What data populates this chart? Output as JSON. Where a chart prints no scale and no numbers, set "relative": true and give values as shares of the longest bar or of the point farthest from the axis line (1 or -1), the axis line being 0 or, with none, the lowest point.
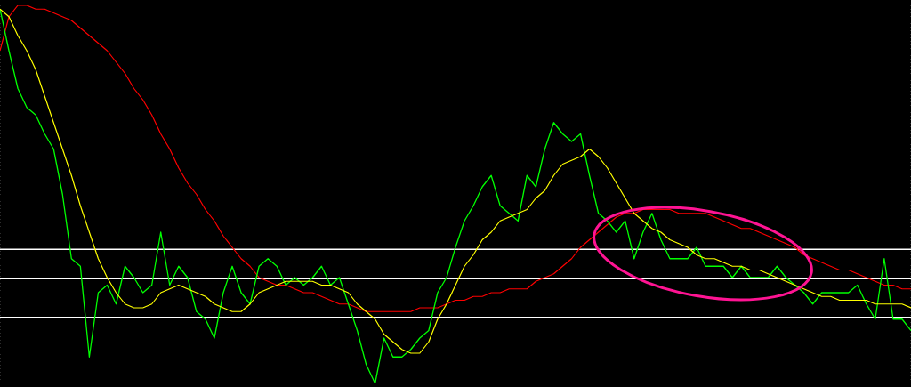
{
  "chart_data": {
    "type": "line",
    "relative": true,
    "grid": "x",
    "marker": "none",
    "line_style": "solid",
    "categories": [
      null,
      null,
      null,
      null,
      null,
      null,
      null,
      null,
      null,
      null,
      null,
      null,
      null,
      null,
      null,
      null,
      null,
      null,
      null,
      null,
      null,
      null,
      null,
      null,
      null,
      null,
      null,
      null,
      null,
      null,
      null,
      null,
      null,
      null,
      null,
      null,
      null,
      null,
      null,
      null,
      null,
      null,
      null,
      null,
      null,
      null,
      null,
      null,
      null,
      null,
      null,
      null,
      null,
      null,
      null,
      null,
      null,
      null,
      null,
      null,
      null,
      null,
      null,
      null,
      null,
      null,
      null,
      null,
      null,
      null,
      null,
      null,
      null,
      null,
      null,
      null,
      null,
      null,
      null,
      null,
      null,
      null,
      null,
      null,
      null,
      null,
      null,
      null,
      null,
      null,
      null,
      null,
      null,
      null,
      null,
      null,
      null,
      null,
      null,
      null,
      null,
      null,
      null
    ],
    "series": [
      {
        "color": "#ff0000",
        "values": [
          0.88,
          0.97,
          1.0,
          1.0,
          0.99,
          0.99,
          0.98,
          0.97,
          0.96,
          0.94,
          0.92,
          0.9,
          0.88,
          0.85,
          0.82,
          0.78,
          0.75,
          0.71,
          0.66,
          0.62,
          0.57,
          0.53,
          0.5,
          0.46,
          0.43,
          0.39,
          0.36,
          0.33,
          0.31,
          0.28,
          0.27,
          0.26,
          0.26,
          0.25,
          0.24,
          0.24,
          0.23,
          0.22,
          0.21,
          0.21,
          0.2,
          0.19,
          0.19,
          0.19,
          0.19,
          0.19,
          0.19,
          0.2,
          0.2,
          0.2,
          0.21,
          0.22,
          0.22,
          0.23,
          0.23,
          0.24,
          0.24,
          0.25,
          0.25,
          0.25,
          0.27,
          0.28,
          0.29,
          0.31,
          0.33,
          0.36,
          0.38,
          0.4,
          0.42,
          0.44,
          0.45,
          0.45,
          0.46,
          0.46,
          0.46,
          0.46,
          0.45,
          0.45,
          0.45,
          0.45,
          0.44,
          0.43,
          0.42,
          0.41,
          0.41,
          0.4,
          0.39,
          0.38,
          0.37,
          0.36,
          0.34,
          0.33,
          0.32,
          0.31,
          0.3,
          0.3,
          0.29,
          0.28,
          0.27,
          0.26,
          0.26,
          0.25,
          0.25
        ]
      },
      {
        "color": "#00ff00",
        "values": [
          0.99,
          0.88,
          0.78,
          0.73,
          0.71,
          0.66,
          0.62,
          0.5,
          0.33,
          0.31,
          0.07,
          0.24,
          0.26,
          0.21,
          0.31,
          0.28,
          0.24,
          0.26,
          0.4,
          0.26,
          0.31,
          0.28,
          0.19,
          0.17,
          0.12,
          0.24,
          0.31,
          0.24,
          0.21,
          0.31,
          0.33,
          0.31,
          0.26,
          0.28,
          0.26,
          0.28,
          0.31,
          0.26,
          0.28,
          0.21,
          0.14,
          0.05,
          0,
          0.12,
          0.07,
          0.07,
          0.09,
          0.12,
          0.14,
          0.24,
          0.28,
          0.36,
          0.43,
          0.47,
          0.52,
          0.55,
          0.47,
          0.45,
          0.43,
          0.55,
          0.52,
          0.62,
          0.69,
          0.66,
          0.64,
          0.66,
          0.55,
          0.45,
          0.43,
          0.4,
          0.43,
          0.33,
          0.4,
          0.45,
          0.38,
          0.33,
          0.33,
          0.33,
          0.36,
          0.31,
          0.31,
          0.31,
          0.28,
          0.31,
          0.28,
          0.28,
          0.28,
          0.31,
          0.28,
          0.26,
          0.24,
          0.21,
          0.24,
          0.24,
          0.24,
          0.24,
          0.26,
          0.21,
          0.17,
          0.33,
          0.17,
          0.17,
          0.14
        ]
      },
      {
        "color": "#ffff00",
        "values": [
          0.99,
          0.97,
          0.92,
          0.88,
          0.83,
          0.76,
          0.69,
          0.62,
          0.55,
          0.47,
          0.4,
          0.33,
          0.28,
          0.24,
          0.21,
          0.2,
          0.2,
          0.21,
          0.24,
          0.25,
          0.26,
          0.25,
          0.24,
          0.23,
          0.21,
          0.2,
          0.19,
          0.19,
          0.21,
          0.24,
          0.25,
          0.26,
          0.27,
          0.27,
          0.27,
          0.27,
          0.26,
          0.26,
          0.25,
          0.24,
          0.21,
          0.19,
          0.17,
          0.13,
          0.11,
          0.09,
          0.08,
          0.08,
          0.11,
          0.17,
          0.21,
          0.26,
          0.31,
          0.34,
          0.38,
          0.4,
          0.43,
          0.44,
          0.45,
          0.46,
          0.49,
          0.51,
          0.55,
          0.58,
          0.59,
          0.6,
          0.62,
          0.6,
          0.57,
          0.53,
          0.49,
          0.45,
          0.43,
          0.41,
          0.4,
          0.38,
          0.37,
          0.36,
          0.34,
          0.33,
          0.33,
          0.32,
          0.31,
          0.31,
          0.3,
          0.3,
          0.29,
          0.28,
          0.27,
          0.26,
          0.25,
          0.24,
          0.23,
          0.23,
          0.22,
          0.22,
          0.22,
          0.22,
          0.21,
          0.21,
          0.21,
          0.21,
          0.2
        ]
      }
    ],
    "ref_lines": [
      {
        "axis": "y",
        "value": 0.355,
        "color": "#ffffff"
      },
      {
        "axis": "y",
        "value": 0.277,
        "color": "#ffffff"
      },
      {
        "axis": "y",
        "value": 0.175,
        "color": "#ffffff"
      }
    ]
  }
}
